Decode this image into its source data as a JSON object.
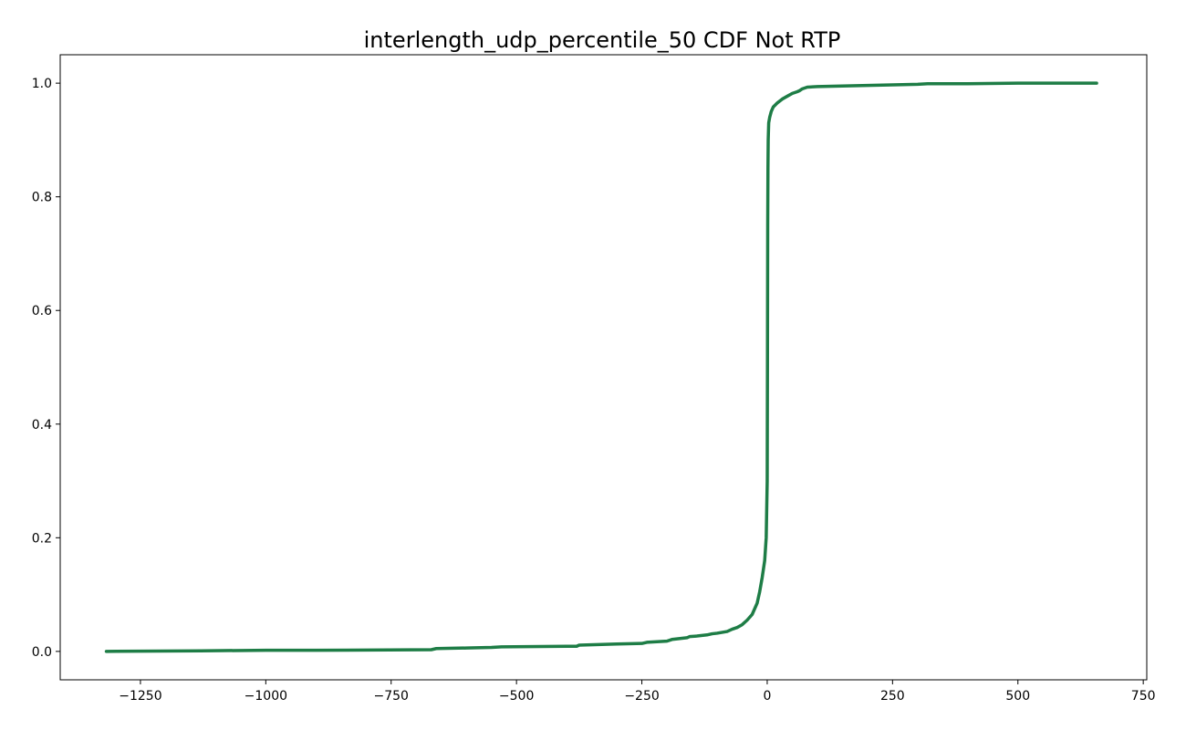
{
  "chart_data": {
    "type": "line",
    "title": "interlength_udp_percentile_50 CDF Not RTP",
    "xlabel": "",
    "ylabel": "",
    "xlim": [
      -1410,
      757
    ],
    "ylim": [
      -0.05,
      1.05
    ],
    "xticks": [
      -1250,
      -1000,
      -750,
      -500,
      -250,
      0,
      250,
      500,
      750
    ],
    "xtick_labels": [
      "−1250",
      "−1000",
      "−750",
      "−500",
      "−250",
      "0",
      "250",
      "500",
      "750"
    ],
    "yticks": [
      0.0,
      0.2,
      0.4,
      0.6,
      0.8,
      1.0
    ],
    "ytick_labels": [
      "0.0",
      "0.2",
      "0.4",
      "0.6",
      "0.8",
      "1.0"
    ],
    "grid": false,
    "series": [
      {
        "color": "#1e7d46",
        "x": [
          -1318,
          -1130,
          -1000,
          -900,
          -670,
          -660,
          -600,
          -550,
          -530,
          -400,
          -380,
          -375,
          -300,
          -250,
          -240,
          -200,
          -190,
          -180,
          -160,
          -155,
          -140,
          -120,
          -110,
          -100,
          -80,
          -70,
          -60,
          -50,
          -40,
          -30,
          -20,
          -15,
          -10,
          -5,
          -2,
          0,
          0.5,
          1,
          1.5,
          2,
          3,
          5,
          8,
          12,
          20,
          30,
          40,
          50,
          60,
          65,
          70,
          80,
          100,
          150,
          250,
          300,
          320,
          400,
          500,
          657
        ],
        "y": [
          0.0,
          0.001,
          0.002,
          0.002,
          0.003,
          0.005,
          0.006,
          0.007,
          0.008,
          0.009,
          0.009,
          0.011,
          0.013,
          0.014,
          0.016,
          0.018,
          0.021,
          0.022,
          0.024,
          0.026,
          0.027,
          0.029,
          0.031,
          0.032,
          0.035,
          0.039,
          0.042,
          0.047,
          0.055,
          0.065,
          0.085,
          0.105,
          0.13,
          0.16,
          0.2,
          0.3,
          0.5,
          0.75,
          0.85,
          0.9,
          0.93,
          0.94,
          0.95,
          0.958,
          0.965,
          0.972,
          0.977,
          0.982,
          0.985,
          0.987,
          0.99,
          0.993,
          0.994,
          0.995,
          0.997,
          0.998,
          0.999,
          0.999,
          1.0,
          1.0
        ]
      }
    ]
  }
}
